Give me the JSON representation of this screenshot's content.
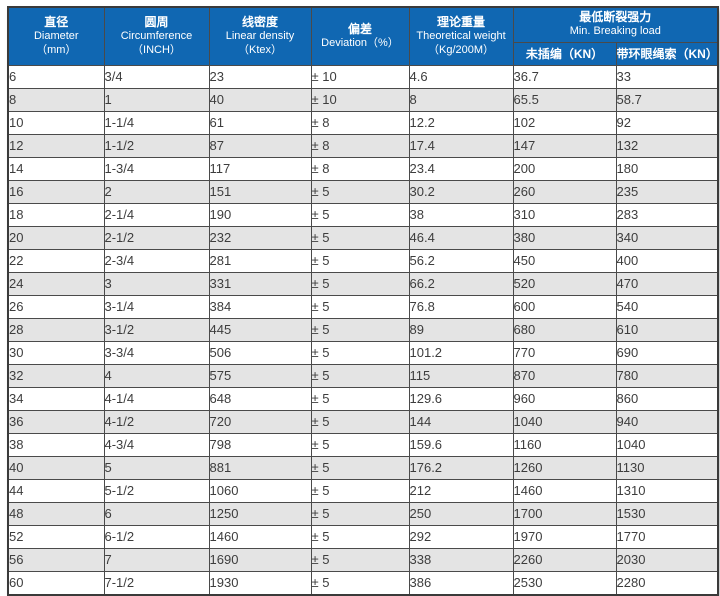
{
  "chart_data": {
    "type": "table",
    "header": {
      "diameter": {
        "zh": "直径",
        "en": "Diameter",
        "unit": "（mm）"
      },
      "circumference": {
        "zh": "圆周",
        "en": "Circumference",
        "unit": "（INCH）"
      },
      "linear_density": {
        "zh": "线密度",
        "en": "Linear density",
        "unit": "（Ktex）"
      },
      "deviation": {
        "zh": "偏差",
        "en": "Deviation（%）",
        "unit": ""
      },
      "theo_weight": {
        "zh": "理论重量",
        "en": "Theoretical weight",
        "unit": "（Kg/200M）"
      },
      "breaking_load": {
        "zh": "最低断裂强力",
        "en": "Min. Breaking load",
        "sub_unspliced": "未插编（KN）",
        "sub_eye": "带环眼绳索（KN）"
      }
    },
    "column_keys": [
      "diameter",
      "circumference",
      "linear-density",
      "deviation",
      "theoretical-weight",
      "breaking-load-unspliced",
      "breaking-load-eye"
    ],
    "rows": [
      [
        "6",
        "3/4",
        "23",
        "± 10",
        "4.6",
        "36.7",
        "33"
      ],
      [
        "8",
        "1",
        "40",
        "± 10",
        "8",
        "65.5",
        "58.7"
      ],
      [
        "10",
        "1-1/4",
        "61",
        "± 8",
        "12.2",
        "102",
        "92"
      ],
      [
        "12",
        "1-1/2",
        "87",
        "± 8",
        "17.4",
        "147",
        "132"
      ],
      [
        "14",
        "1-3/4",
        "117",
        "± 8",
        "23.4",
        "200",
        "180"
      ],
      [
        "16",
        "2",
        "151",
        "± 5",
        "30.2",
        "260",
        "235"
      ],
      [
        "18",
        "2-1/4",
        "190",
        "± 5",
        "38",
        "310",
        "283"
      ],
      [
        "20",
        "2-1/2",
        "232",
        "± 5",
        "46.4",
        "380",
        "340"
      ],
      [
        "22",
        "2-3/4",
        "281",
        "± 5",
        "56.2",
        "450",
        "400"
      ],
      [
        "24",
        "3",
        "331",
        "± 5",
        "66.2",
        "520",
        "470"
      ],
      [
        "26",
        "3-1/4",
        "384",
        "± 5",
        "76.8",
        "600",
        "540"
      ],
      [
        "28",
        "3-1/2",
        "445",
        "± 5",
        "89",
        "680",
        "610"
      ],
      [
        "30",
        "3-3/4",
        "506",
        "± 5",
        "101.2",
        "770",
        "690"
      ],
      [
        "32",
        "4",
        "575",
        "± 5",
        "115",
        "870",
        "780"
      ],
      [
        "34",
        "4-1/4",
        "648",
        "± 5",
        "129.6",
        "960",
        "860"
      ],
      [
        "36",
        "4-1/2",
        "720",
        "± 5",
        "144",
        "1040",
        "940"
      ],
      [
        "38",
        "4-3/4",
        "798",
        "± 5",
        "159.6",
        "1160",
        "1040"
      ],
      [
        "40",
        "5",
        "881",
        "± 5",
        "176.2",
        "1260",
        "1130"
      ],
      [
        "44",
        "5-1/2",
        "1060",
        "± 5",
        "212",
        "1460",
        "1310"
      ],
      [
        "48",
        "6",
        "1250",
        "± 5",
        "250",
        "1700",
        "1530"
      ],
      [
        "52",
        "6-1/2",
        "1460",
        "± 5",
        "292",
        "1970",
        "1770"
      ],
      [
        "56",
        "7",
        "1690",
        "± 5",
        "338",
        "2260",
        "2030"
      ],
      [
        "60",
        "7-1/2",
        "1930",
        "± 5",
        "386",
        "2530",
        "2280"
      ]
    ],
    "layout": {
      "stripe_pattern": "even rows white, odd rows gray (1-based: 2nd,4th... gray)"
    }
  },
  "colors": {
    "header_bg": "#1067b2",
    "header_text": "#ffffff",
    "row_stripe": "#e4e4e4",
    "row_plain": "#ffffff",
    "grid_line": "#4a4a4a",
    "data_text": "#3d3d3d"
  }
}
